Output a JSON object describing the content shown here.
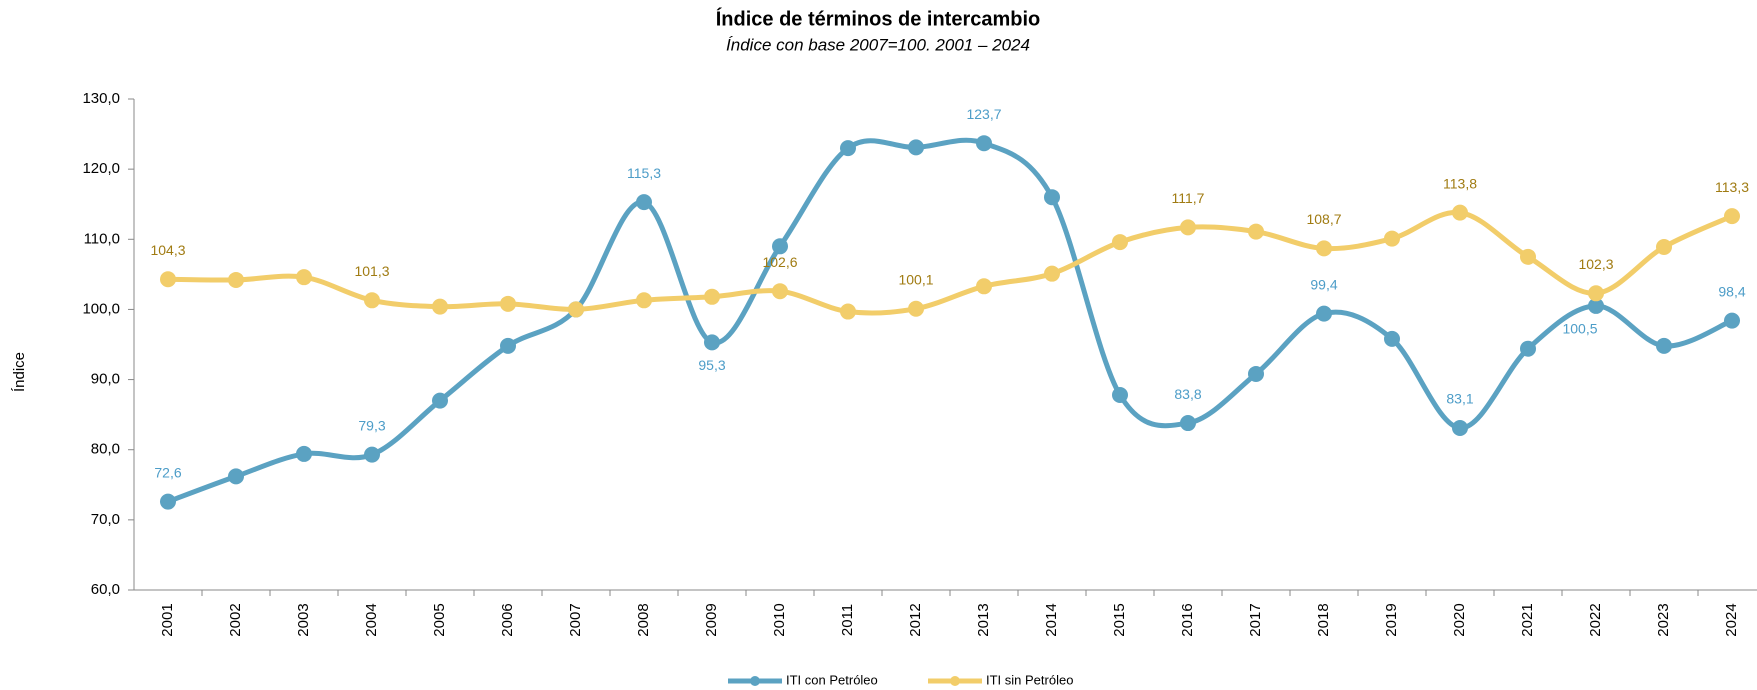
{
  "chart_data": {
    "type": "line",
    "title": "Índice de términos de intercambio",
    "subtitle": "Índice con base 2007=100. 2001 – 2024",
    "y_label": "Índice",
    "categories": [
      "2001",
      "2002",
      "2003",
      "2004",
      "2005",
      "2006",
      "2007",
      "2008",
      "2009",
      "2010",
      "2011",
      "2012",
      "2013",
      "2014",
      "2015",
      "2016",
      "2017",
      "2018",
      "2019",
      "2020",
      "2021",
      "2022",
      "2023",
      "2024"
    ],
    "series": [
      {
        "name": "ITI con Petróleo",
        "color": "#5ba2c2",
        "label_color": "#4d9dc8",
        "values": [
          72.6,
          76.2,
          79.4,
          79.3,
          87.0,
          94.8,
          100.0,
          115.3,
          95.3,
          109.0,
          123.0,
          123.1,
          123.7,
          116.0,
          87.8,
          83.8,
          90.8,
          99.4,
          95.8,
          83.1,
          94.4,
          100.5,
          94.8,
          98.4
        ],
        "value_labels": [
          "72,6",
          null,
          null,
          "79,3",
          null,
          null,
          null,
          "115,3",
          "95,3",
          null,
          null,
          null,
          "123,7",
          null,
          null,
          "83,8",
          null,
          "99,4",
          null,
          "83,1",
          null,
          "100,5",
          null,
          "98,4"
        ]
      },
      {
        "name": "ITI sin Petróleo",
        "color": "#f2cd6a",
        "label_color": "#a07b12",
        "values": [
          104.3,
          104.2,
          104.6,
          101.3,
          100.4,
          100.8,
          100.0,
          101.3,
          101.8,
          102.6,
          99.7,
          100.1,
          103.3,
          105.1,
          109.6,
          111.7,
          111.1,
          108.7,
          110.1,
          113.8,
          107.5,
          102.3,
          108.9,
          113.3
        ],
        "value_labels": [
          "104,3",
          null,
          null,
          "101,3",
          null,
          null,
          null,
          null,
          null,
          "102,6",
          null,
          "100,1",
          null,
          null,
          null,
          "111,7",
          null,
          "108,7",
          null,
          "113,8",
          null,
          "102,3",
          null,
          "113,3"
        ]
      }
    ],
    "ylim": [
      60,
      130
    ],
    "yticks": [
      {
        "value": 60,
        "label": "60,0"
      },
      {
        "value": 70,
        "label": "70,0"
      },
      {
        "value": 80,
        "label": "80,0"
      },
      {
        "value": 90,
        "label": "90,0"
      },
      {
        "value": 100,
        "label": "100,0"
      },
      {
        "value": 110,
        "label": "110,0"
      },
      {
        "value": 120,
        "label": "120,0"
      },
      {
        "value": 130,
        "label": "130,0"
      }
    ],
    "grid": false,
    "legend": "bottom"
  }
}
